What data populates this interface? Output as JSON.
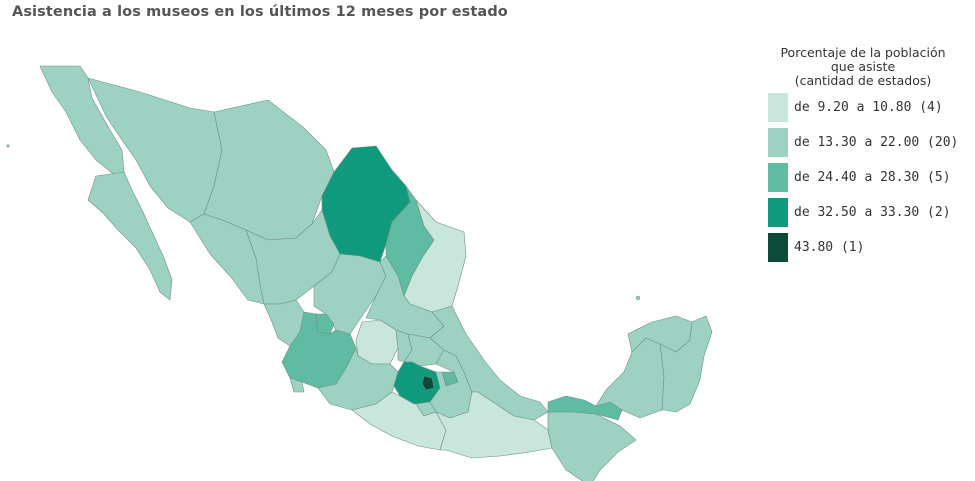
{
  "title": "Asistencia a los museos en los últimos 12 meses por estado",
  "legend": {
    "title_lines": [
      "Porcentaje de la población",
      "que asiste",
      "(cantidad de estados)"
    ],
    "items": [
      {
        "label": "de 9.20 a 10.80 (4)",
        "color": "#c9e6dd"
      },
      {
        "label": "de 13.30 a 22.00 (20)",
        "color": "#9dd2c2"
      },
      {
        "label": "de 24.40 a 28.30 (5)",
        "color": "#5fbba1"
      },
      {
        "label": "de 32.50 a 33.30 (2)",
        "color": "#0f9a7d"
      },
      {
        "label": "43.80 (1)",
        "color": "#0c4a39"
      }
    ]
  },
  "map": {
    "country": "México",
    "classes": [
      {
        "range": [
          9.2,
          10.8
        ],
        "count": 4
      },
      {
        "range": [
          13.3,
          22.0
        ],
        "count": 20
      },
      {
        "range": [
          24.4,
          28.3
        ],
        "count": 5
      },
      {
        "range": [
          32.5,
          33.3
        ],
        "count": 2
      },
      {
        "range": [
          43.8,
          43.8
        ],
        "count": 1
      }
    ]
  }
}
